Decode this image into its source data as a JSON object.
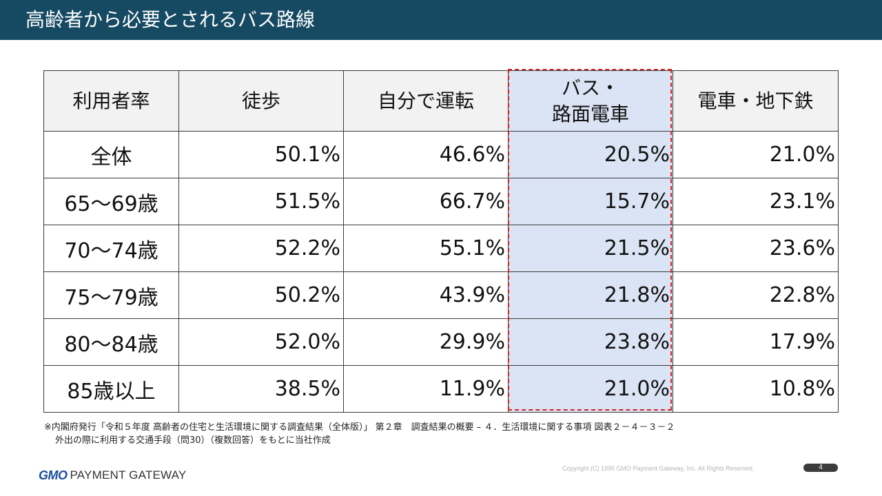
{
  "slide": {
    "title": "高齢者から必要とされるバス路線",
    "page_number": "4",
    "copyright": "Copyright (C) 1995 GMO Payment Gateway, Inc. All Rights Reserved."
  },
  "table": {
    "headers": [
      "利用者率",
      "徒歩",
      "自分で運転",
      "バス・\n路面電車",
      "電車・地下鉄"
    ],
    "header_bus_line1": "バス・",
    "header_bus_line2": "路面電車",
    "rows": [
      [
        "全体",
        "50.1%",
        "46.6%",
        "20.5%",
        "21.0%"
      ],
      [
        "65～69歳",
        "51.5%",
        "66.7%",
        "15.7%",
        "23.1%"
      ],
      [
        "70～74歳",
        "52.2%",
        "55.1%",
        "21.5%",
        "23.6%"
      ],
      [
        "75～79歳",
        "50.2%",
        "43.9%",
        "21.8%",
        "22.8%"
      ],
      [
        "80～84歳",
        "52.0%",
        "29.9%",
        "23.8%",
        "17.9%"
      ],
      [
        "85歳以上",
        "38.5%",
        "11.9%",
        "21.0%",
        "10.8%"
      ]
    ],
    "highlight_column": "バス・路面電車",
    "highlight_color": "#dbe4f4",
    "highlight_border_color": "#d42020"
  },
  "footnote": {
    "line1": "※内閣府発行「令和５年度 高齢者の住宅と生活環境に関する調査結果（全体版）」 第２章　調査結果の概要 – ４．生活環境に関する事項 図表２－４－３－２",
    "line2": "外出の際に利用する交通手段（問30）（複数回答）をもとに当社作成"
  },
  "logo": {
    "brand": "GMO",
    "name": "PAYMENT GATEWAY"
  },
  "colors": {
    "title_bar": "#164a63",
    "header_fill": "#f2f2f2"
  }
}
